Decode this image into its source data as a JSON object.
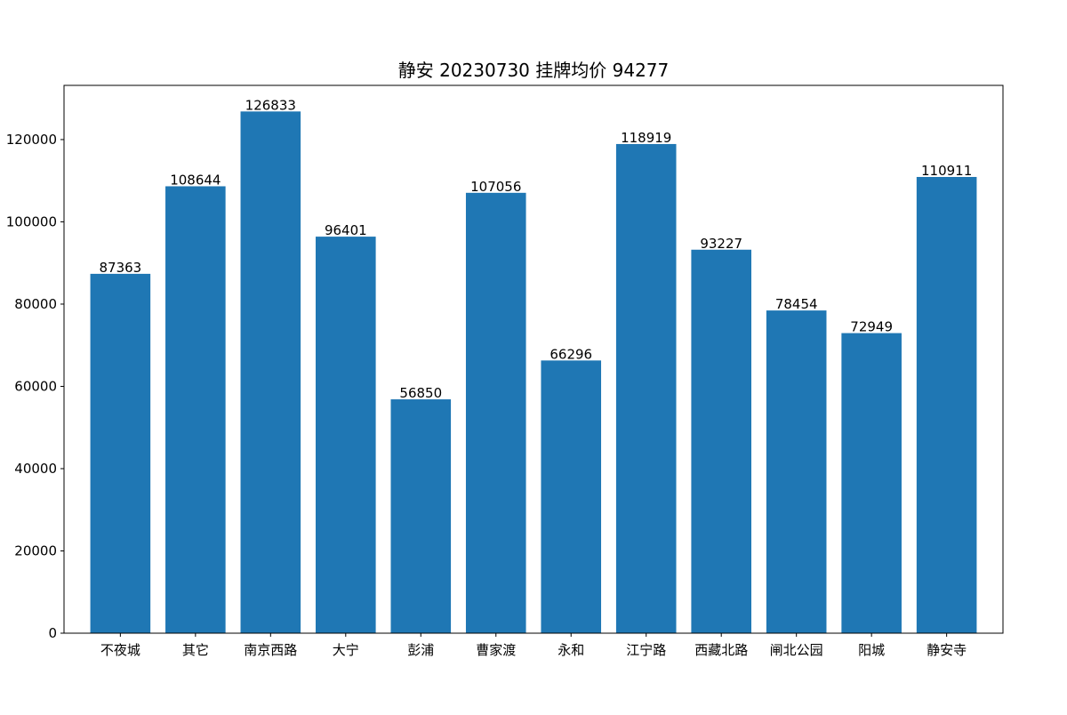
{
  "chart_data": {
    "type": "bar",
    "title": "静安 20230730 挂牌均价 94277",
    "xlabel": "",
    "ylabel": "",
    "categories": [
      "不夜城",
      "其它",
      "南京西路",
      "大宁",
      "彭浦",
      "曹家渡",
      "永和",
      "江宁路",
      "西藏北路",
      "闸北公园",
      "阳城",
      "静安寺"
    ],
    "values": [
      87363,
      108644,
      126833,
      96401,
      56850,
      107056,
      66296,
      118919,
      93227,
      78454,
      72949,
      110911
    ],
    "ylim": [
      0,
      133175
    ],
    "yticks": [
      0,
      20000,
      40000,
      60000,
      80000,
      100000,
      120000
    ],
    "ytick_labels": [
      "0",
      "20000",
      "40000",
      "60000",
      "80000",
      "100000",
      "120000"
    ],
    "data_labels": [
      "87363",
      "108644",
      "126833",
      "96401",
      "56850",
      "107056",
      "66296",
      "118919",
      "93227",
      "78454",
      "72949",
      "110911"
    ],
    "grid": false,
    "legend": "none",
    "bar_color": "#1f77b4"
  }
}
